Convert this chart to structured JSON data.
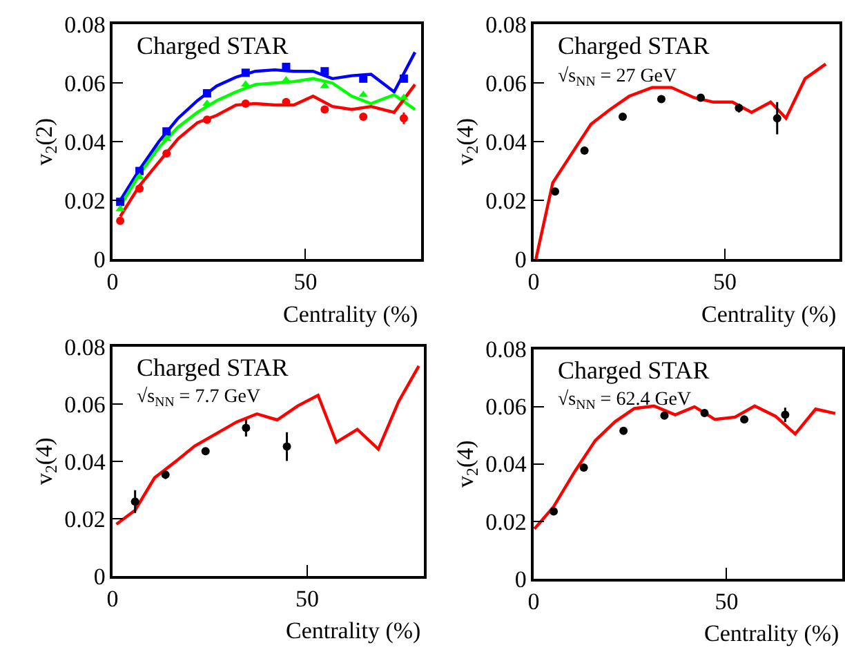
{
  "chart_data": [
    {
      "type": "scatter",
      "title": "Charged STAR",
      "xlabel": "Centrality (%)",
      "ylabel": "v$_{2}$(2)",
      "xlim": [
        0,
        80
      ],
      "ylim": [
        0,
        0.08
      ],
      "xticks": [
        0,
        50
      ],
      "yticks": [
        0,
        0.02,
        0.04,
        0.06,
        0.08
      ],
      "x": [
        2,
        7,
        14,
        24.5,
        34.5,
        45,
        55,
        65,
        75.5
      ],
      "series": [
        {
          "marker": "square",
          "color": "#0000ff",
          "values": [
            0.0195,
            0.03,
            0.0435,
            0.0565,
            0.0635,
            0.0655,
            0.064,
            0.0615,
            0.0615
          ]
        },
        {
          "marker": "triangle",
          "color": "#00ff00",
          "values": [
            0.017,
            0.028,
            0.041,
            0.053,
            0.0595,
            0.061,
            0.059,
            0.056,
            0.055
          ]
        },
        {
          "marker": "circle",
          "color": "#ff0000",
          "values": [
            0.013,
            0.024,
            0.036,
            0.0475,
            0.053,
            0.0535,
            0.051,
            0.0485,
            0.048
          ],
          "errors": [
            null,
            null,
            null,
            null,
            null,
            null,
            null,
            null,
            0.002
          ]
        },
        {
          "type": "line",
          "marker": "none",
          "color": "#0000ff",
          "x": [
            2,
            7,
            12,
            17,
            22,
            27,
            32,
            37,
            42,
            47,
            52,
            57,
            62,
            67,
            73,
            75,
            78.4
          ],
          "values": [
            0.02,
            0.0305,
            0.04,
            0.048,
            0.054,
            0.059,
            0.062,
            0.064,
            0.0645,
            0.064,
            0.064,
            0.0615,
            0.0625,
            0.063,
            0.057,
            0.062,
            0.0705
          ]
        },
        {
          "type": "line",
          "marker": "none",
          "color": "#00ff00",
          "x": [
            2,
            7,
            12,
            17,
            22,
            27,
            32,
            37,
            42,
            47,
            52,
            57,
            62,
            67,
            73,
            78.4
          ],
          "values": [
            0.018,
            0.029,
            0.038,
            0.045,
            0.05,
            0.054,
            0.057,
            0.0595,
            0.06,
            0.0605,
            0.0615,
            0.06,
            0.0555,
            0.053,
            0.056,
            0.051
          ]
        },
        {
          "type": "line",
          "marker": "none",
          "color": "#ff0000",
          "x": [
            2,
            7,
            12,
            17,
            22,
            27,
            32,
            37,
            42,
            47,
            52,
            57,
            62,
            67,
            73,
            78.4
          ],
          "values": [
            0.0145,
            0.025,
            0.033,
            0.041,
            0.0465,
            0.049,
            0.0525,
            0.053,
            0.0525,
            0.0525,
            0.0555,
            0.052,
            0.051,
            0.052,
            0.05,
            0.0595
          ]
        }
      ]
    },
    {
      "type": "scatter",
      "title": "Charged STAR",
      "subtitle": "√s$_{NN}$ = 27 GeV",
      "xlabel": "Centrality (%)",
      "ylabel": "v$_{2}$(4)",
      "xlim": [
        0,
        80
      ],
      "ylim": [
        0,
        0.08
      ],
      "xticks": [
        0,
        50
      ],
      "yticks": [
        0,
        0.02,
        0.04,
        0.06,
        0.08
      ],
      "x": [
        5.6,
        13.3,
        23.3,
        33.4,
        43.7,
        53.7,
        63.7
      ],
      "series": [
        {
          "marker": "circle",
          "color": "#000000",
          "values": [
            0.023,
            0.037,
            0.0485,
            0.0545,
            0.055,
            0.0515,
            0.048
          ],
          "errors": [
            null,
            null,
            null,
            null,
            null,
            0.0015,
            0.0055
          ]
        },
        {
          "type": "line",
          "marker": "none",
          "color": "#ff0000",
          "x": [
            0.6,
            5,
            10,
            15,
            20,
            25,
            31,
            36,
            42,
            47,
            52,
            57,
            62,
            66,
            71,
            76.4
          ],
          "values": [
            0,
            0.026,
            0.036,
            0.046,
            0.051,
            0.0555,
            0.0585,
            0.0585,
            0.055,
            0.0535,
            0.0535,
            0.05,
            0.0535,
            0.048,
            0.0615,
            0.0665
          ]
        }
      ]
    },
    {
      "type": "scatter",
      "title": "Charged STAR",
      "subtitle": "√s$_{NN}$ = 7.7 GeV",
      "xlabel": "Centrality (%)",
      "ylabel": "v$_{2}$(4)",
      "xlim": [
        0,
        80
      ],
      "ylim": [
        0,
        0.08
      ],
      "xticks": [
        0,
        50
      ],
      "yticks": [
        0,
        0.02,
        0.04,
        0.06,
        0.08
      ],
      "x": [
        5.8,
        13.6,
        23.9,
        34.3,
        44.8
      ],
      "series": [
        {
          "marker": "circle",
          "color": "#000000",
          "values": [
            0.0259,
            0.0353,
            0.0435,
            0.0516,
            0.0451
          ],
          "errors": [
            0.004,
            0.0015,
            0.001,
            0.003,
            0.005
          ]
        },
        {
          "type": "line",
          "marker": "none",
          "color": "#ff0000",
          "x": [
            1,
            5.8,
            10.8,
            16.3,
            21.1,
            26.5,
            31.9,
            37.1,
            42.3,
            47.6,
            52.8,
            57.5,
            62.9,
            68.3,
            73.5,
            78.7
          ],
          "values": [
            0.018,
            0.0229,
            0.0342,
            0.04,
            0.0453,
            0.0495,
            0.0537,
            0.0565,
            0.0544,
            0.0593,
            0.063,
            0.0466,
            0.0511,
            0.0442,
            0.0608,
            0.0732
          ]
        }
      ]
    },
    {
      "type": "scatter",
      "title": "Charged STAR",
      "subtitle": "√s$_{NN}$ = 62.4 GeV",
      "xlabel": "Centrality (%)",
      "ylabel": "v$_{2}$(4)",
      "xlim": [
        0,
        80
      ],
      "ylim": [
        0,
        0.08
      ],
      "xticks": [
        0,
        50
      ],
      "yticks": [
        0,
        0.02,
        0.04,
        0.06,
        0.08
      ],
      "x": [
        5.2,
        13,
        23.3,
        33.9,
        44.3,
        54.6,
        65.2
      ],
      "series": [
        {
          "marker": "circle",
          "color": "#000000",
          "values": [
            0.0234,
            0.0387,
            0.0515,
            0.0568,
            0.0577,
            0.0555,
            0.0571
          ],
          "errors": [
            null,
            null,
            null,
            null,
            null,
            null,
            0.0025
          ]
        },
        {
          "type": "line",
          "marker": "none",
          "color": "#ff0000",
          "x": [
            0.2,
            5.1,
            10.6,
            16,
            21.1,
            26.1,
            31.2,
            36.7,
            41.7,
            47,
            52.2,
            57.3,
            62.7,
            67.8,
            73.1,
            78.2
          ],
          "values": [
            0.0173,
            0.0249,
            0.0372,
            0.0482,
            0.0547,
            0.0593,
            0.0602,
            0.0571,
            0.0599,
            0.0555,
            0.0563,
            0.0602,
            0.0566,
            0.0504,
            0.0591,
            0.0576
          ]
        }
      ]
    }
  ]
}
